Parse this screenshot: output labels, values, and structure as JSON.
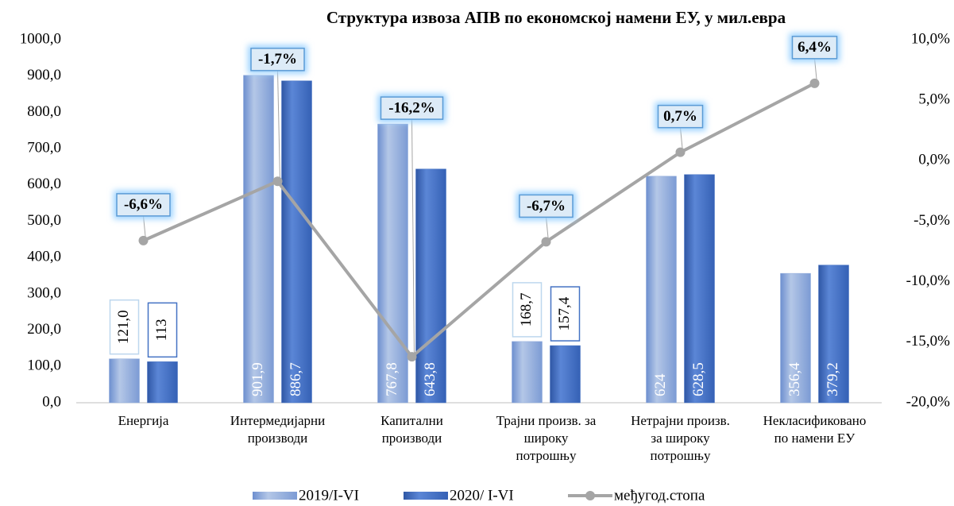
{
  "chart_data": {
    "type": "bar-line",
    "title": "Структура извоза АПВ по економској намени ЕУ, у мил.евра",
    "categories": [
      "Енергија",
      "Интермедијарни\nпроизводи",
      "Капитални\nпроизводи",
      "Трајни произв. за\nшироку\nпотрошњу",
      "Нетрајни произв.\nза широку\nпотрошњу",
      "Некласификовано\nпо намени ЕУ"
    ],
    "series": [
      {
        "name": "2019/I-VI",
        "type": "bar",
        "color": "#8eaadb",
        "values": [
          121.0,
          901.9,
          767.8,
          168.7,
          624,
          356.4
        ],
        "value_labels": [
          "121,0",
          "901,9",
          "767,8",
          "168,7",
          "624",
          "356,4"
        ]
      },
      {
        "name": "2020/ I-VI",
        "type": "bar",
        "color": "#4472c4",
        "values": [
          113,
          886.7,
          643.8,
          157.4,
          628.5,
          379.2
        ],
        "value_labels": [
          "113",
          "886,7",
          "643,8",
          "157,4",
          "628,5",
          "379,2"
        ]
      },
      {
        "name": "међугод.стопа",
        "type": "line",
        "axis": "y2",
        "color": "#a5a5a5",
        "values": [
          -6.6,
          -1.7,
          -16.2,
          -6.7,
          0.7,
          6.4
        ],
        "value_labels": [
          "-6,6%",
          "-1,7%",
          "-16,2%",
          "-6,7%",
          "0,7%",
          "6,4%"
        ]
      }
    ],
    "ylim": [
      0,
      1000
    ],
    "yticks": [
      {
        "value": 0,
        "label": "0,0"
      },
      {
        "value": 100,
        "label": "100,0"
      },
      {
        "value": 200,
        "label": "200,0"
      },
      {
        "value": 300,
        "label": "300,0"
      },
      {
        "value": 400,
        "label": "400,0"
      },
      {
        "value": 500,
        "label": "500,0"
      },
      {
        "value": 600,
        "label": "600,0"
      },
      {
        "value": 700,
        "label": "700,0"
      },
      {
        "value": 800,
        "label": "800,0"
      },
      {
        "value": 900,
        "label": "900,0"
      },
      {
        "value": 1000,
        "label": "1000,0"
      }
    ],
    "y2lim": [
      -20,
      10
    ],
    "y2ticks": [
      {
        "value": -20,
        "label": "-20,0%"
      },
      {
        "value": -15,
        "label": "-15,0%"
      },
      {
        "value": -10,
        "label": "-10,0%"
      },
      {
        "value": -5,
        "label": "-5,0%"
      },
      {
        "value": 0,
        "label": "0,0%"
      },
      {
        "value": 5,
        "label": "5,0%"
      },
      {
        "value": 10,
        "label": "10,0%"
      }
    ],
    "legend": "bottom",
    "grid": false
  }
}
